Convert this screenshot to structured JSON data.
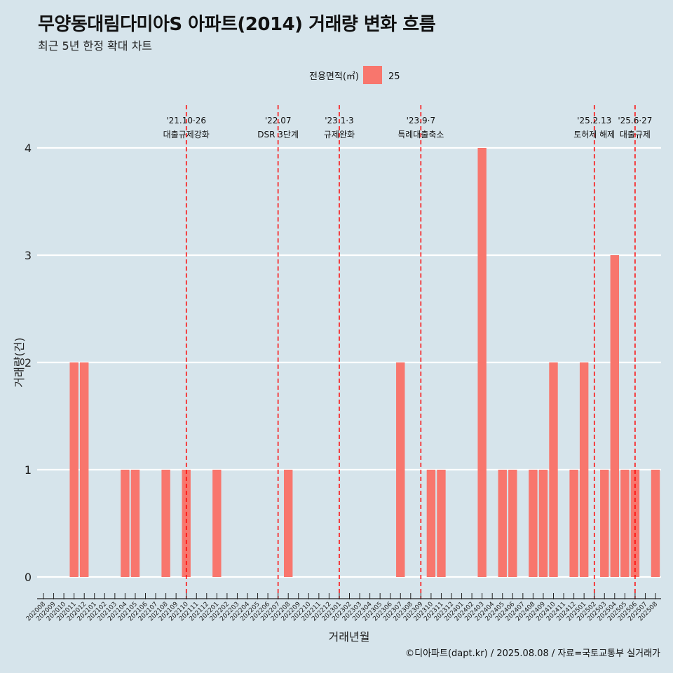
{
  "header": {
    "title": "무양동대림다미아S 아파트(2014) 거래량 변화 흐름",
    "subtitle": "최근 5년 한정 확대 차트"
  },
  "footer": {
    "caption": "©디아파트(dapt.kr) / 2025.08.08 / 자료=국토교통부 실거래가"
  },
  "colors": {
    "background": "#d6e4eb",
    "bar": "#f8766d",
    "gridline": "#ffffff",
    "event_line": "#ff0000"
  },
  "chart_data": {
    "type": "bar",
    "xlabel": "거래년월",
    "ylabel": "거래량(건)",
    "ylim": [
      0,
      4
    ],
    "yticks": [
      0,
      1,
      2,
      3,
      4
    ],
    "grid": true,
    "legend": {
      "title": "전용면적(㎡)",
      "placement": "top-center"
    },
    "categories": [
      "202008",
      "202009",
      "202010",
      "202011",
      "202012",
      "202101",
      "202102",
      "202103",
      "202104",
      "202105",
      "202106",
      "202107",
      "202108",
      "202109",
      "202110",
      "202111",
      "202112",
      "202201",
      "202202",
      "202203",
      "202204",
      "202205",
      "202206",
      "202207",
      "202208",
      "202209",
      "202210",
      "202211",
      "202212",
      "202301",
      "202302",
      "202303",
      "202304",
      "202305",
      "202306",
      "202307",
      "202308",
      "202309",
      "202310",
      "202311",
      "202312",
      "202401",
      "202402",
      "202403",
      "202404",
      "202405",
      "202406",
      "202407",
      "202408",
      "202409",
      "202410",
      "202411",
      "202412",
      "202501",
      "202502",
      "202503",
      "202504",
      "202505",
      "202506",
      "202507",
      "202508"
    ],
    "series": [
      {
        "name": "25",
        "values": [
          0,
          0,
          0,
          2,
          2,
          0,
          0,
          0,
          1,
          1,
          0,
          0,
          1,
          0,
          1,
          0,
          0,
          1,
          0,
          0,
          0,
          0,
          0,
          0,
          1,
          0,
          0,
          0,
          0,
          0,
          0,
          0,
          0,
          0,
          0,
          2,
          0,
          0,
          1,
          1,
          0,
          0,
          0,
          4,
          0,
          1,
          1,
          0,
          1,
          1,
          2,
          0,
          1,
          2,
          0,
          1,
          3,
          1,
          1,
          0,
          1
        ]
      }
    ],
    "events": [
      {
        "x": "202110",
        "date_label": "'21.10·26",
        "label": "대출규제강화"
      },
      {
        "x": "202207",
        "date_label": "'22.07",
        "label": "DSR 3단계"
      },
      {
        "x": "202301",
        "date_label": "'23.1·3",
        "label": "규제완화"
      },
      {
        "x": "202309",
        "date_label": "'23.9·7",
        "label": "특례대출축소"
      },
      {
        "x": "202502",
        "date_label": "'25.2.13",
        "label": "토허제 해제"
      },
      {
        "x": "202506",
        "date_label": "'25.6·27",
        "label": "대출규제"
      }
    ]
  }
}
